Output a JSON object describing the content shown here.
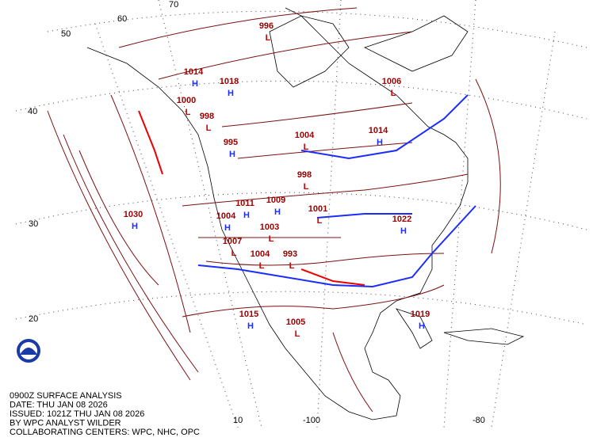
{
  "map": {
    "caption": [
      "0900Z SURFACE ANALYSIS",
      "DATE: THU JAN 08 2026",
      "ISSUED: 1021Z THU JAN 08 2026",
      "BY WPC ANALYST WILDER",
      "COLLABORATING CENTERS: WPC, NHC, OPC"
    ],
    "lat_labels": [
      "70",
      "60",
      "50",
      "40",
      "30",
      "20"
    ],
    "lon_labels": [
      "10",
      "-100",
      "-80"
    ],
    "high_color": "#1a2cff",
    "low_color": "#cc0000",
    "value_color": "#990000",
    "centers": [
      {
        "type": "L",
        "value": "996"
      },
      {
        "type": "H",
        "value": "1014"
      },
      {
        "type": "H",
        "value": "1018"
      },
      {
        "type": "L",
        "value": "1006"
      },
      {
        "type": "L",
        "value": "1000"
      },
      {
        "type": "H",
        "value": "1014"
      },
      {
        "type": "L",
        "value": "998"
      },
      {
        "type": "H",
        "value": "995"
      },
      {
        "type": "L",
        "value": "1004"
      },
      {
        "type": "L",
        "value": "998"
      },
      {
        "type": "H",
        "value": "1011"
      },
      {
        "type": "H",
        "value": "1009"
      },
      {
        "type": "L",
        "value": "1001"
      },
      {
        "type": "H",
        "value": "1030"
      },
      {
        "type": "H",
        "value": "1004"
      },
      {
        "type": "L",
        "value": "1003"
      },
      {
        "type": "H",
        "value": "1022"
      },
      {
        "type": "L",
        "value": "1007"
      },
      {
        "type": "L",
        "value": "1004"
      },
      {
        "type": "L",
        "value": "993"
      },
      {
        "type": "H",
        "value": "1015"
      },
      {
        "type": "H",
        "value": "1019"
      },
      {
        "type": "L",
        "value": "1005"
      }
    ]
  }
}
